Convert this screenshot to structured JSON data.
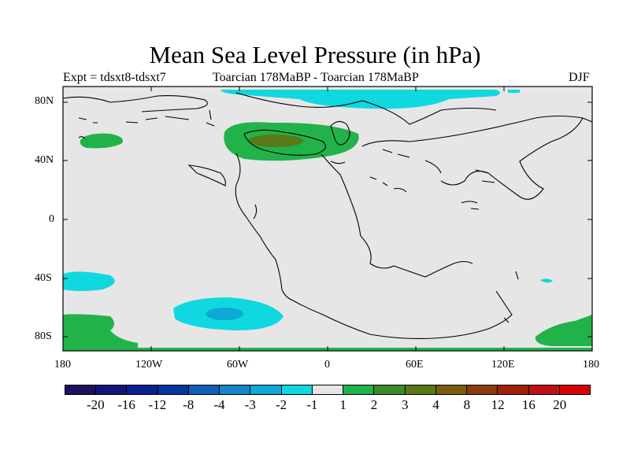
{
  "title": "Mean Sea Level Pressure (in hPa)",
  "subtitle_left": "Expt = tdsxt8-tdsxt7",
  "subtitle_center": "Toarcian 178MaBP - Toarcian 178MaBP",
  "subtitle_right": "DJF",
  "y_axis_labels": [
    "80N",
    "40N",
    "0",
    "40S",
    "80S"
  ],
  "x_axis_labels": [
    "180",
    "120W",
    "60W",
    "0",
    "60E",
    "120E",
    "180"
  ],
  "colorbar": {
    "colors": [
      "#1f0f62",
      "#15137a",
      "#0b2090",
      "#0637a0",
      "#1060b8",
      "#1884cc",
      "#10a8d8",
      "#10d8e0",
      "#e6e6e6",
      "#22b24a",
      "#3a8a2a",
      "#5a7818",
      "#7a5c10",
      "#8a3c0c",
      "#a02208",
      "#c01010",
      "#d80000"
    ],
    "labels": [
      "-20",
      "-16",
      "-12",
      "-8",
      "-4",
      "-3",
      "-2",
      "-1",
      "1",
      "2",
      "3",
      "4",
      "8",
      "12",
      "16",
      "20"
    ]
  },
  "map_colors": {
    "background": "#e6e6e6",
    "green": "#22b24a",
    "dark_green": "#3a8a2a",
    "olive": "#5a7818",
    "cyan": "#10d8e0",
    "light_blue": "#10a8d8"
  }
}
